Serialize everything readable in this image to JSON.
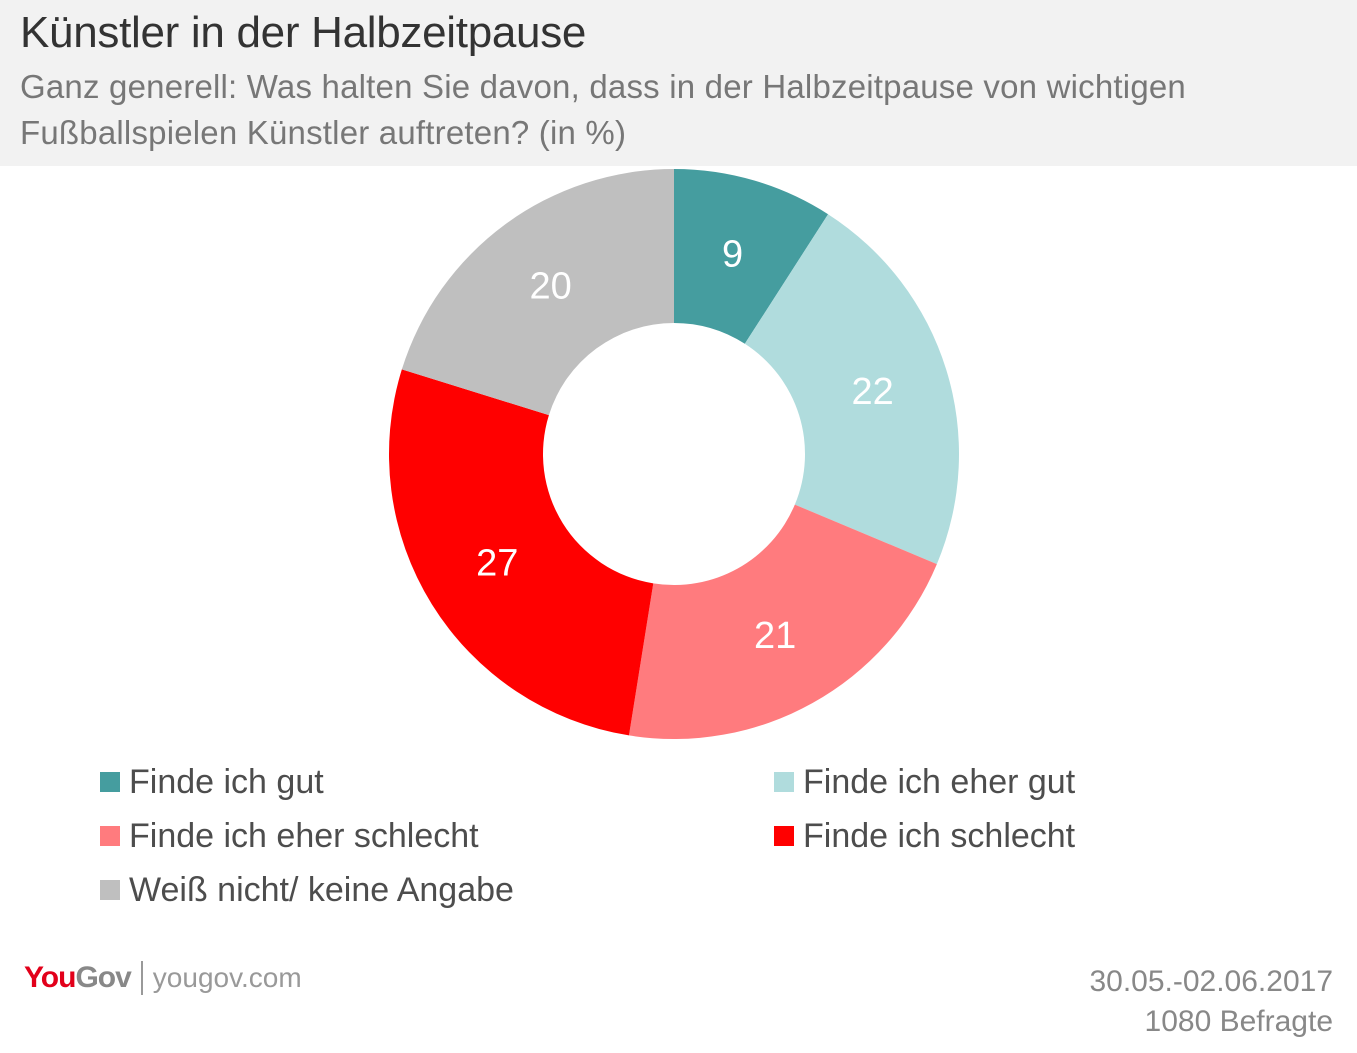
{
  "title": "Künstler in der Halbzeitpause",
  "subtitle": "Ganz generell: Was halten Sie davon, dass in der Halbzeitpause von wichtigen Fußballspielen Künstler auftreten? (in %)",
  "chart_data": {
    "type": "pie",
    "style": "donut",
    "unit": "%",
    "start": "top",
    "direction": "clockwise",
    "legend_position": "bottom",
    "slices": [
      {
        "label": "Finde ich gut",
        "value": 9,
        "color": "#459d9f"
      },
      {
        "label": "Finde ich eher gut",
        "value": 22,
        "color": "#b0dcdd"
      },
      {
        "label": "Finde ich eher schlecht",
        "value": 21,
        "color": "#ff7b7e"
      },
      {
        "label": "Finde ich schlecht",
        "value": 27,
        "color": "#ff0000"
      },
      {
        "label": "Weiß nicht/ keine Angabe",
        "value": 20,
        "color": "#bfbfbf"
      }
    ]
  },
  "footer": {
    "logo_you": "You",
    "logo_gov": "Gov",
    "url": "yougov.com",
    "date": "30.05.-02.06.2017",
    "respondents": "1080 Befragte"
  }
}
